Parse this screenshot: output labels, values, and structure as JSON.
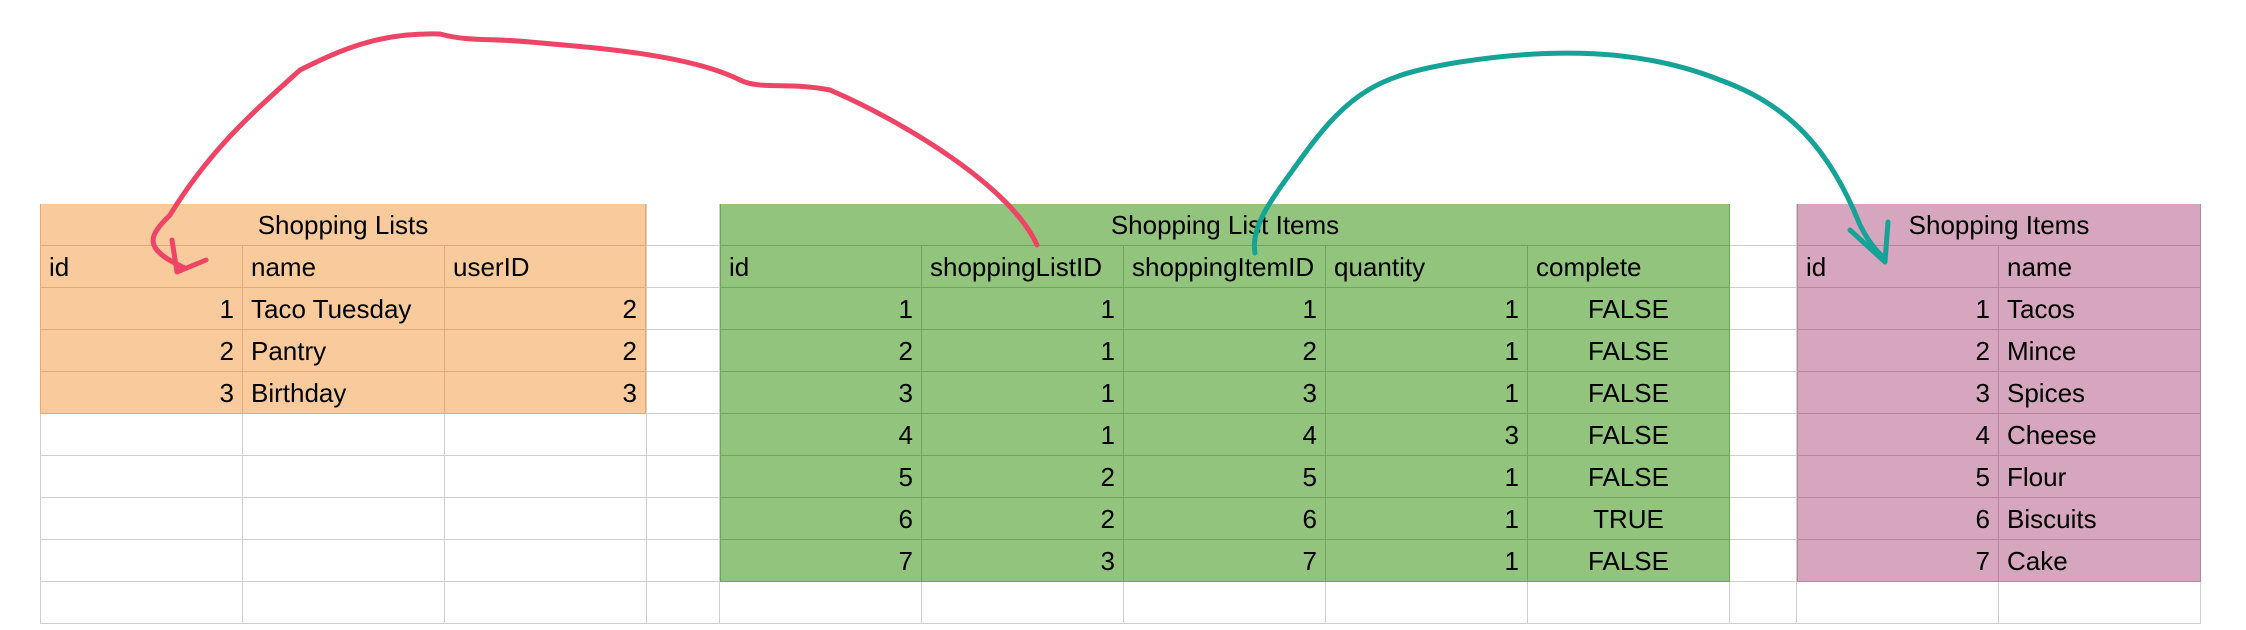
{
  "colors": {
    "lists_fill": "#f9cb9c",
    "list_items_fill": "#93c47d",
    "items_fill": "#d5a6bd",
    "lists_border": "#e3a97a",
    "list_items_border": "#6fa65a",
    "items_border": "#b8849e",
    "grid_line": "#cfcfcf",
    "arrow_red": "#ef4466",
    "arrow_teal": "#14a396"
  },
  "tables": [
    {
      "id": "shopping-lists",
      "title": "Shopping Lists",
      "headers": [
        "id",
        "name",
        "userID"
      ],
      "align": [
        "num",
        "left",
        "num"
      ],
      "rows": [
        [
          "1",
          "Taco Tuesday",
          "2"
        ],
        [
          "2",
          "Pantry",
          "2"
        ],
        [
          "3",
          "Birthday",
          "3"
        ]
      ]
    },
    {
      "id": "shopping-list-items",
      "title": "Shopping List Items",
      "headers": [
        "id",
        "shoppingListID",
        "shoppingItemID",
        "quantity",
        "complete"
      ],
      "align": [
        "num",
        "num",
        "num",
        "num",
        "ctr"
      ],
      "rows": [
        [
          "1",
          "1",
          "1",
          "1",
          "FALSE"
        ],
        [
          "2",
          "1",
          "2",
          "1",
          "FALSE"
        ],
        [
          "3",
          "1",
          "3",
          "1",
          "FALSE"
        ],
        [
          "4",
          "1",
          "4",
          "3",
          "FALSE"
        ],
        [
          "5",
          "2",
          "5",
          "1",
          "FALSE"
        ],
        [
          "6",
          "2",
          "6",
          "1",
          "TRUE"
        ],
        [
          "7",
          "3",
          "7",
          "1",
          "FALSE"
        ]
      ]
    },
    {
      "id": "shopping-items",
      "title": "Shopping Items",
      "headers": [
        "id",
        "name"
      ],
      "align": [
        "num",
        "left"
      ],
      "rows": [
        [
          "1",
          "Tacos"
        ],
        [
          "2",
          "Mince"
        ],
        [
          "3",
          "Spices"
        ],
        [
          "4",
          "Cheese"
        ],
        [
          "5",
          "Flour"
        ],
        [
          "6",
          "Biscuits"
        ],
        [
          "7",
          "Cake"
        ]
      ]
    }
  ]
}
